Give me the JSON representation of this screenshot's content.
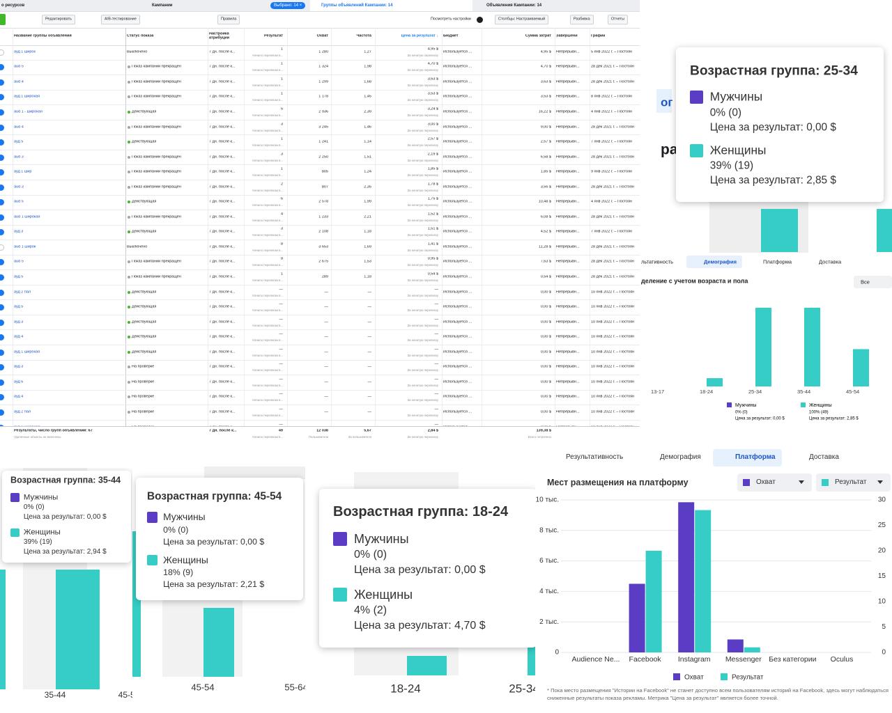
{
  "tabs": [
    "о ресурсов",
    "Кампании",
    "Выбрано: 14 ×",
    "Группы объявлений Кампании: 14",
    "Объявления Кампании: 14"
  ],
  "toolbar": [
    "Редактировать",
    "A/B-тестирование",
    "Правила",
    "Посмотреть настройки",
    "Столбцы: Настраиваемый",
    "Разбивка",
    "Отчеты"
  ],
  "table": {
    "headers": [
      "Название группы объявлений",
      "Статус показа",
      "Настройка атрибуции",
      "Результат",
      "Охват",
      "Частота",
      "Цена за результат ↓",
      "Бюджет",
      "Сумма затрат",
      "Завершени",
      "График"
    ],
    "rows": [
      {
        "on": false,
        "dot": null,
        "cells": [
          "ауд 1 широк",
          "Выключено",
          "7 дн. после к...",
          "1",
          "Начало переписки в...",
          "1 280",
          "1,27",
          "4,95 $",
          "За начатую переписку",
          "Используется ...",
          "4,95 $",
          "Непрерывн...",
          "5 янв 2022 г. – Постоян"
        ]
      },
      {
        "on": true,
        "dot": "#a0a4a8",
        "cells": [
          "aud 5",
          "Показ кампании прекращен",
          "7 дн. после к...",
          "1",
          "Начало переписки в...",
          "1 324",
          "1,98",
          "4,70 $",
          "За начатую переписку",
          "Используется ...",
          "4,70 $",
          "Непрерывн...",
          "28 дек 2021 г. – Постоян"
        ]
      },
      {
        "on": true,
        "dot": "#a0a4a8",
        "cells": [
          "aud 4",
          "Показ кампании прекращен",
          "7 дн. после к...",
          "1",
          "Начало переписки в...",
          "1 299",
          "1,68",
          "3,63 $",
          "За начатую переписку",
          "Используется ...",
          "3,63 $",
          "Непрерывн...",
          "28 дек 2021 г. – Постоян"
        ]
      },
      {
        "on": true,
        "dot": "#a0a4a8",
        "cells": [
          "ауд 1 широкая",
          "Показ кампании прекращен",
          "7 дн. после к...",
          "1",
          "Начало переписки в...",
          "1 178",
          "1,45",
          "3,53 $",
          "За начатую переписку",
          "Используется ...",
          "3,53 $",
          "Непрерывн...",
          "8 янв 2022 г. – Постоян"
        ]
      },
      {
        "on": true,
        "dot": "#42b72a",
        "cells": [
          "aud 1 - широкая",
          "Действующая",
          "7 дн. после к...",
          "5",
          "Начало переписки в...",
          "2 936",
          "2,39",
          "3,24 $",
          "За начатую переписку",
          "Используется ...",
          "16,22 $",
          "Непрерывн...",
          "4 янв 2022 г. – Постоян"
        ]
      },
      {
        "on": true,
        "dot": "#a0a4a8",
        "cells": [
          "aud 4",
          "Показ кампании прекращен",
          "7 дн. после к...",
          "3",
          "Начало переписки в...",
          "3 245",
          "1,46",
          "3,00 $",
          "За начатую переписку",
          "Используется ...",
          "9,00 $",
          "Непрерывн...",
          "28 дек 2021 г. – Постоян"
        ]
      },
      {
        "on": true,
        "dot": "#42b72a",
        "cells": [
          "ауд 5",
          "Действующая",
          "7 дн. после к...",
          "1",
          "Начало переписки в...",
          "1 241",
          "1,14",
          "2,57 $",
          "За начатую переписку",
          "Используется ...",
          "2,57 $",
          "Непрерывн...",
          "7 янв 2022 г. – Постоян"
        ]
      },
      {
        "on": true,
        "dot": "#a0a4a8",
        "cells": [
          "aud 3",
          "Показ кампании прекращен",
          "7 дн. после к...",
          "3",
          "Начало переписки в...",
          "2 250",
          "1,51",
          "2,19 $",
          "За начатую переписку",
          "Используется ...",
          "6,58 $",
          "Непрерывн...",
          "28 дек 2021 г. – Постоян"
        ]
      },
      {
        "on": true,
        "dot": "#a0a4a8",
        "cells": [
          "ауд 1 шир",
          "Показ кампании прекращен",
          "7 дн. после к...",
          "1",
          "Начало переписки в...",
          "805",
          "1,24",
          "1,85 $",
          "За начатую переписку",
          "Используется ...",
          "1,85 $",
          "Непрерывн...",
          "9 янв 2022 г. – Постоян"
        ]
      },
      {
        "on": true,
        "dot": "#a0a4a8",
        "cells": [
          "aud 3",
          "Показ кампании прекращен",
          "7 дн. после к...",
          "2",
          "Начало переписки в...",
          "807",
          "2,35",
          "1,78 $",
          "За начатую переписку",
          "Используется ...",
          "3,56 $",
          "Непрерывн...",
          "28 дек 2021 г. – Постоян"
        ]
      },
      {
        "on": true,
        "dot": "#42b72a",
        "cells": [
          "aud 5",
          "Действующая",
          "7 дн. после к...",
          "6",
          "Начало переписки в...",
          "2 578",
          "1,99",
          "1,75 $",
          "За начатую переписку",
          "Используется ...",
          "10,48 $",
          "Непрерывн...",
          "4 янв 2022 г. – Постоян"
        ]
      },
      {
        "on": true,
        "dot": "#a0a4a8",
        "cells": [
          "aud 1 широкая",
          "Показ кампании прекращен",
          "7 дн. после к...",
          "4",
          "Начало переписки в...",
          "1 233",
          "2,21",
          "1,52 $",
          "За начатую переписку",
          "Используется ...",
          "6,08 $",
          "Непрерывн...",
          "28 дек 2021 г. – Постоян"
        ]
      },
      {
        "on": true,
        "dot": "#42b72a",
        "cells": [
          "ауд 3",
          "Действующая",
          "7 дн. после к...",
          "3",
          "Начало переписки в...",
          "2 108",
          "1,18",
          "1,51 $",
          "За начатую переписку",
          "Используется ...",
          "4,52 $",
          "Непрерывн...",
          "7 янв 2022 г. – Постоян"
        ]
      },
      {
        "on": false,
        "dot": null,
        "cells": [
          "aud 1 широк",
          "Выключено",
          "7 дн. после к...",
          "8",
          "Начало переписки в...",
          "3 653",
          "1,69",
          "1,41 $",
          "За начатую переписку",
          "Используется ...",
          "11,28 $",
          "Непрерывн...",
          "28 дек 2021 г. – Постоян"
        ]
      },
      {
        "on": true,
        "dot": "#a0a4a8",
        "cells": [
          "aud 5",
          "Показ кампании прекращен",
          "7 дн. после к...",
          "8",
          "Начало переписки в...",
          "2 675",
          "1,53",
          "0,95 $",
          "За начатую переписку",
          "Используется ...",
          "7,63 $",
          "Непрерывн...",
          "28 дек 2021 г. – Постоян"
        ]
      },
      {
        "on": true,
        "dot": "#a0a4a8",
        "cells": [
          "ауд 5",
          "Показ кампании прекращен",
          "7 дн. после к...",
          "1",
          "Начало переписки в...",
          "289",
          "1,18",
          "0,54 $",
          "За начатую переписку",
          "Используется ...",
          "0,54 $",
          "Непрерывн...",
          "28 дек 2021 г. – Постоян"
        ]
      },
      {
        "on": true,
        "dot": "#42b72a",
        "cells": [
          "ауд 2 пал",
          "Действующая",
          "7 дн. после к...",
          "—",
          "Начало переписки в...",
          "—",
          "—",
          "—",
          "За начатую переписку",
          "Используется ...",
          "0,00 $",
          "Непрерывн...",
          "10 янв 2022 г. – Постоян"
        ]
      },
      {
        "on": true,
        "dot": "#42b72a",
        "cells": [
          "ауд 5",
          "Действующая",
          "7 дн. после к...",
          "—",
          "Начало переписки в...",
          "—",
          "—",
          "—",
          "За начатую переписку",
          "Используется ...",
          "0,00 $",
          "Непрерывн...",
          "10 янв 2022 г. – Постоян"
        ]
      },
      {
        "on": true,
        "dot": "#42b72a",
        "cells": [
          "ауд 3",
          "Действующая",
          "7 дн. после к...",
          "—",
          "Начало переписки в...",
          "—",
          "—",
          "—",
          "За начатую переписку",
          "Используется ...",
          "0,00 $",
          "Непрерывн...",
          "10 янв 2022 г. – Постоян"
        ]
      },
      {
        "on": true,
        "dot": "#42b72a",
        "cells": [
          "ауд 4",
          "Действующая",
          "7 дн. после к...",
          "—",
          "Начало переписки в...",
          "—",
          "—",
          "—",
          "За начатую переписку",
          "Используется ...",
          "0,00 $",
          "Непрерывн...",
          "10 янв 2022 г. – Постоян"
        ]
      },
      {
        "on": true,
        "dot": "#42b72a",
        "cells": [
          "ауд 1 широкая",
          "Действующая",
          "7 дн. после к...",
          "—",
          "Начало переписки в...",
          "—",
          "—",
          "—",
          "За начатую переписку",
          "Используется ...",
          "0,00 $",
          "Непрерывн...",
          "10 янв 2022 г. – Постоян"
        ]
      },
      {
        "on": true,
        "dot": "#a0a4a8",
        "cells": [
          "ауд 3",
          "На проверке",
          "7 дн. после к...",
          "—",
          "Начало переписки в...",
          "—",
          "—",
          "—",
          "За начатую переписку",
          "Используется ...",
          "0,00 $",
          "Непрерывн...",
          "10 янв 2022 г. – Постоян"
        ]
      },
      {
        "on": true,
        "dot": "#a0a4a8",
        "cells": [
          "ауд 6",
          "На проверке",
          "7 дн. после к...",
          "—",
          "Начало переписки в...",
          "—",
          "—",
          "—",
          "За начатую переписку",
          "Используется ...",
          "0,00 $",
          "Непрерывн...",
          "10 янв 2022 г. – Постоян"
        ]
      },
      {
        "on": true,
        "dot": "#a0a4a8",
        "cells": [
          "ауд 4",
          "На проверке",
          "7 дн. после к...",
          "—",
          "Начало переписки в...",
          "—",
          "—",
          "—",
          "За начатую переписку",
          "Используется ...",
          "0,00 $",
          "Непрерывн...",
          "10 янв 2022 г. – Постоян"
        ]
      },
      {
        "on": true,
        "dot": "#a0a4a8",
        "cells": [
          "ауд 2 пал",
          "На проверке",
          "7 дн. после к...",
          "—",
          "Начало переписки в...",
          "—",
          "—",
          "—",
          "За начатую переписку",
          "Используется ...",
          "0,00 $",
          "Непрерывн...",
          "10 янв 2022 г. – Постоян"
        ]
      },
      {
        "on": true,
        "dot": "#a0a4a8",
        "cells": [
          "ауд 1 широкая",
          "На проверке",
          "7 дн. после к...",
          "—",
          "Начало переписки в...",
          "—",
          "—",
          "—",
          "За начатую переписку",
          "Используется ...",
          "0,00 $",
          "Непрерывн...",
          "10 янв 2022 г. – Постоян"
        ]
      }
    ],
    "footer": {
      "name": "Результаты, число групп объявлений: 67",
      "name_note": "Удаленные объекты не включены",
      "attribution": "7 дн. после к...",
      "result": "49",
      "result_note": "Начало переписки в...",
      "reach": "12 038",
      "reach_note": "Пользователи",
      "frequency": "5,67",
      "frequency_note": "За пользователя",
      "cost": "2,84 $",
      "cost_note": "За начатую переписку",
      "spend": "139,38 $",
      "spend_note": "Всего потрачено"
    }
  },
  "demography_panel": {
    "partial_texts": [
      "ог",
      "ра"
    ],
    "tabs": [
      "льтативность",
      "Демография",
      "Платформа",
      "Доставка"
    ],
    "subtitle": "деление с учетом возраста и пола",
    "filter": "Все",
    "tooltip": {
      "title": "Возрастная группа: 25-34",
      "rows": [
        {
          "name": "Мужчины",
          "share": "0% (0)",
          "cost": "Цена за результат: 0,00 $"
        },
        {
          "name": "Женщины",
          "share": "39% (19)",
          "cost": "Цена за результат: 2,85 $"
        }
      ]
    },
    "chart": {
      "type": "bar",
      "categories": [
        "13-17",
        "18-24",
        "25-34",
        "35-44",
        "45-54"
      ],
      "series": [
        {
          "name": "Мужчины",
          "color": "#5b3cc4",
          "values": [
            0,
            0,
            0,
            0,
            0
          ],
          "legend": [
            "0% (0)",
            "Цена за результат: 0,00 $"
          ]
        },
        {
          "name": "Женщины",
          "color": "#35cdc6",
          "values": [
            0,
            2,
            19,
            19,
            9
          ],
          "legend": [
            "100% (49)",
            "Цена за результат: 2,85 $"
          ]
        }
      ]
    }
  },
  "crops": [
    {
      "tooltip": {
        "title": "Возрастная группа: 35-44",
        "rows": [
          {
            "name": "Мужчины",
            "share": "0% (0)",
            "cost": "Цена за результат: 0,00 $"
          },
          {
            "name": "Женщины",
            "share": "39% (19)",
            "cost": "Цена за результат: 2,94 $"
          }
        ]
      },
      "axis_labels": [
        "35-44",
        "45-54"
      ]
    },
    {
      "tooltip": {
        "title": "Возрастная группа: 45-54",
        "rows": [
          {
            "name": "Мужчины",
            "share": "0% (0)",
            "cost": "Цена за результат: 0,00 $"
          },
          {
            "name": "Женщины",
            "share": "18% (9)",
            "cost": "Цена за результат: 2,21 $"
          }
        ]
      },
      "axis_labels": [
        "45-54",
        "55-64"
      ]
    },
    {
      "tooltip": {
        "title": "Возрастная группа: 18-24",
        "rows": [
          {
            "name": "Мужчины",
            "share": "0% (0)",
            "cost": "Цена за результат: 0,00 $"
          },
          {
            "name": "Женщины",
            "share": "4% (2)",
            "cost": "Цена за результат: 4,70 $"
          }
        ]
      },
      "axis_labels": [
        "18-24",
        "25-34"
      ]
    }
  ],
  "platform": {
    "type": "bar",
    "tabs": [
      "Результативность",
      "Демография",
      "Платформа",
      "Доставка"
    ],
    "title": "Мест размещения на платформу",
    "categories": [
      "Audience Ne...",
      "Facebook",
      "Instagram",
      "Messenger",
      "Без категории",
      "Oculus"
    ],
    "series": [
      {
        "name": "Охват",
        "color": "#5b3cc4",
        "values": [
          0,
          4500,
          9850,
          850,
          0,
          0
        ]
      },
      {
        "name": "Результат",
        "color": "#35cdc6",
        "axis": "y2",
        "values": [
          0,
          20,
          28,
          1,
          0,
          0
        ]
      }
    ],
    "ylim": [
      0,
      10000
    ],
    "yticks": [
      0,
      {
        "value": 2000,
        "label": "2 тыс."
      },
      {
        "value": 4000,
        "label": "4 тыс."
      },
      {
        "value": 6000,
        "label": "6 тыс."
      },
      {
        "value": 8000,
        "label": "8 тыс."
      },
      {
        "value": 10000,
        "label": "10 тыс."
      }
    ],
    "y2lim": [
      0,
      30
    ],
    "y2ticks": [
      0,
      5,
      10,
      15,
      20,
      25,
      30
    ],
    "grid": true,
    "footnote": "* Пока место размещения \"Истории на Facebook\" не станет доступно всем пользователям историй на Facebook, здесь могут наблюдаться сниженные результаты показа рекламы. Метрика \"Цена за результат\" является более точной."
  }
}
